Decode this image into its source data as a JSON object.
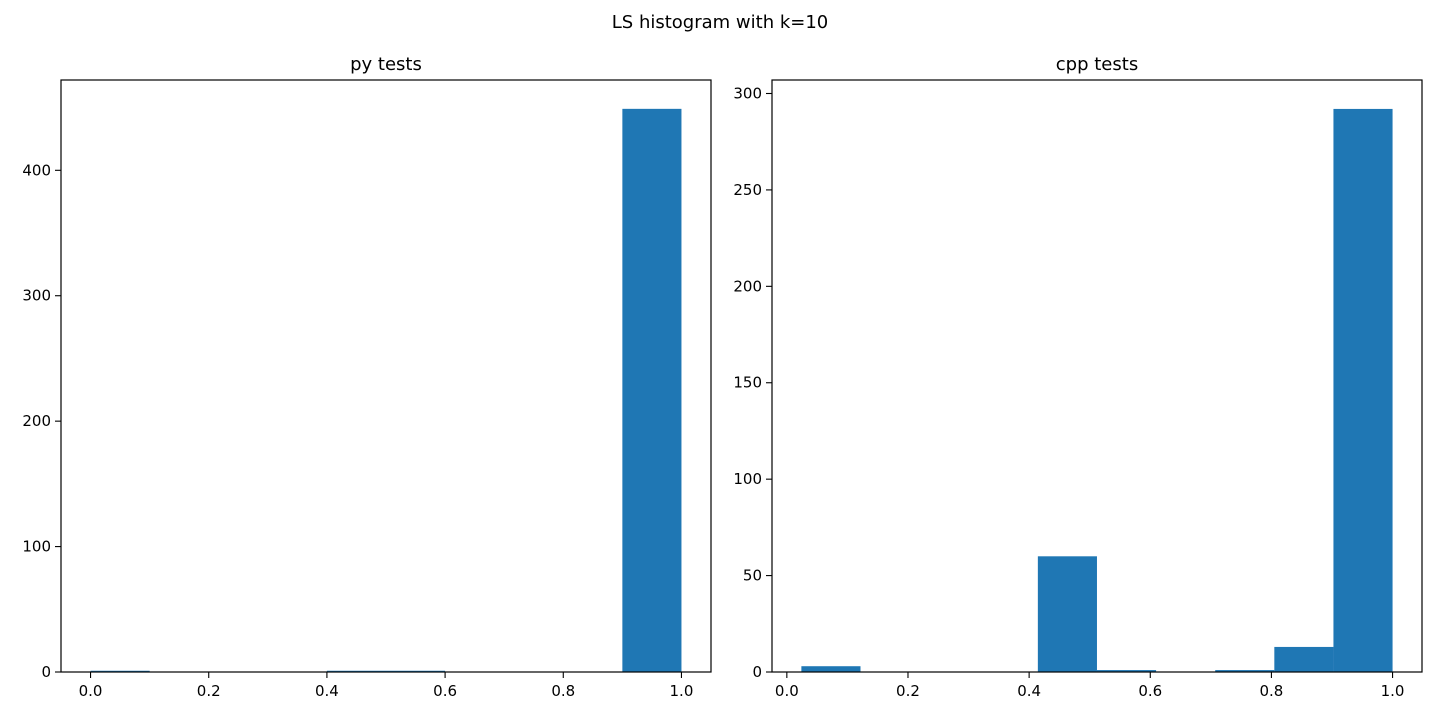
{
  "figure": {
    "suptitle": "LS histogram with k=10"
  },
  "colors": {
    "bar": "#1f77b4",
    "axis": "#000000"
  },
  "chart_data": [
    {
      "type": "bar",
      "title": "py tests",
      "xlabel": "",
      "ylabel": "",
      "xlim": [
        -0.05,
        1.05
      ],
      "ylim": [
        0,
        472
      ],
      "xticks": [
        0.0,
        0.2,
        0.4,
        0.6,
        0.8,
        1.0
      ],
      "xtick_labels": [
        "0.0",
        "0.2",
        "0.4",
        "0.6",
        "0.8",
        "1.0"
      ],
      "yticks": [
        0,
        100,
        200,
        300,
        400
      ],
      "ytick_labels": [
        "0",
        "100",
        "200",
        "300",
        "400"
      ],
      "bin_edges": [
        0.0,
        0.1,
        0.2,
        0.3,
        0.4,
        0.5,
        0.6,
        0.7,
        0.8,
        0.9,
        1.0
      ],
      "values": [
        1,
        0,
        0,
        0,
        1,
        1,
        0,
        0,
        0,
        449
      ],
      "grid": false,
      "legend": "none"
    },
    {
      "type": "bar",
      "title": "cpp tests",
      "xlabel": "",
      "ylabel": "",
      "xlim": [
        -0.0245,
        1.0486
      ],
      "ylim": [
        0,
        307
      ],
      "xticks": [
        0.0,
        0.2,
        0.4,
        0.6,
        0.8,
        1.0
      ],
      "xtick_labels": [
        "0.0",
        "0.2",
        "0.4",
        "0.6",
        "0.8",
        "1.0"
      ],
      "yticks": [
        0,
        50,
        100,
        150,
        200,
        250,
        300
      ],
      "ytick_labels": [
        "0",
        "50",
        "100",
        "150",
        "200",
        "250",
        "300"
      ],
      "bin_edges": [
        0.024,
        0.1216,
        0.2192,
        0.3168,
        0.4144,
        0.512,
        0.6096,
        0.7072,
        0.8048,
        0.9024,
        1.0
      ],
      "values": [
        3,
        0,
        0,
        0,
        60,
        1,
        0,
        1,
        13,
        292
      ],
      "grid": false,
      "legend": "none"
    }
  ]
}
